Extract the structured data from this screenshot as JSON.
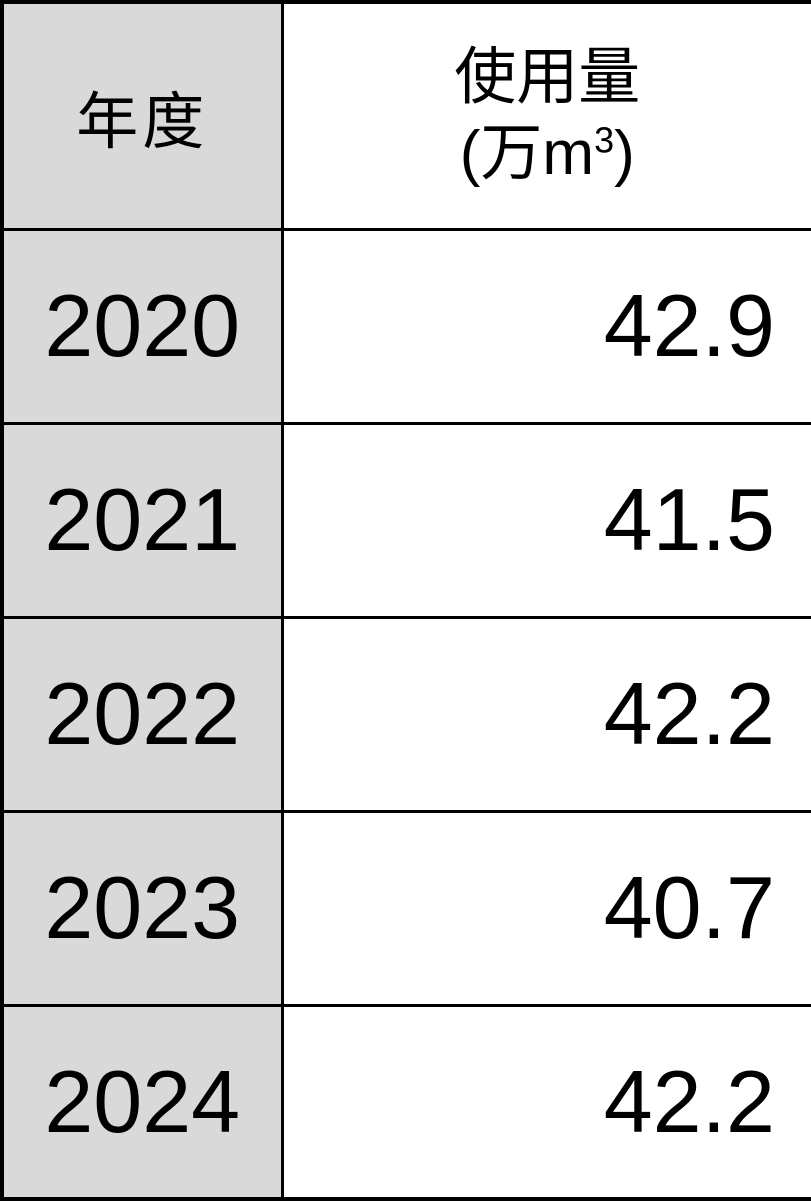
{
  "colors": {
    "year_column_bg": "#d9d9d9",
    "cell_bg": "#ffffff",
    "border": "#000000",
    "text": "#000000"
  },
  "table": {
    "header": {
      "year_label": "年度",
      "usage_title": "使用量",
      "unit_open": "(万m",
      "unit_sup": "3",
      "unit_close": ")"
    },
    "rows": [
      {
        "year": "2020",
        "value": "42.9"
      },
      {
        "year": "2021",
        "value": "41.5"
      },
      {
        "year": "2022",
        "value": "42.2"
      },
      {
        "year": "2023",
        "value": "40.7"
      },
      {
        "year": "2024",
        "value": "42.2"
      }
    ]
  },
  "chart_data": {
    "type": "table",
    "title": "",
    "columns": [
      "年度",
      "使用量 (万m³)"
    ],
    "rows": [
      [
        "2020",
        42.9
      ],
      [
        "2021",
        41.5
      ],
      [
        "2022",
        42.2
      ],
      [
        "2023",
        40.7
      ],
      [
        "2024",
        42.2
      ]
    ],
    "notes": "Annual usage in units of 10,000 cubic meters; year column shaded gray, values right-aligned"
  }
}
